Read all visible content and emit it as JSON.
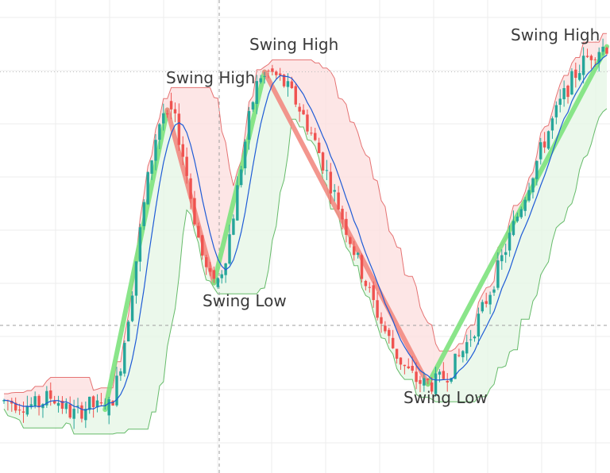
{
  "chart_data": {
    "type": "candlestick",
    "title": "",
    "xlabel": "",
    "ylabel": "",
    "ylim": [
      0,
      100
    ],
    "grid": true,
    "legend": "none",
    "colors": {
      "up": "#26a69a",
      "down": "#ef5350",
      "ma_line": "#1e5bd6",
      "upper_band_fill": "#fde0e0",
      "upper_band_line": "#e57373",
      "lower_band_fill": "#e6f6e6",
      "lower_band_line": "#66bb6a",
      "swing_up_line": "#7ee37e",
      "swing_down_line": "#f28b82",
      "grid": "#ececec",
      "crosshair": "#9e9e9e"
    },
    "swing_points": [
      {
        "label": "Swing Low",
        "bar": 26,
        "price": 12
      },
      {
        "label": "Swing High",
        "bar": 42,
        "price": 83
      },
      {
        "label": "Swing Low",
        "bar": 54,
        "price": 42
      },
      {
        "label": "Swing High",
        "bar": 67,
        "price": 92
      },
      {
        "label": "Swing Low",
        "bar": 109,
        "price": 18
      },
      {
        "label": "Swing High",
        "bar": 155,
        "price": 98
      }
    ],
    "annotations": [
      {
        "text": "Swing High",
        "ref": 1
      },
      {
        "text": "Swing Low",
        "ref": 2
      },
      {
        "text": "Swing High",
        "ref": 3
      },
      {
        "text": "Swing Low",
        "ref": 4
      },
      {
        "text": "Swing High",
        "ref": 5
      }
    ],
    "candles_count": 156
  }
}
